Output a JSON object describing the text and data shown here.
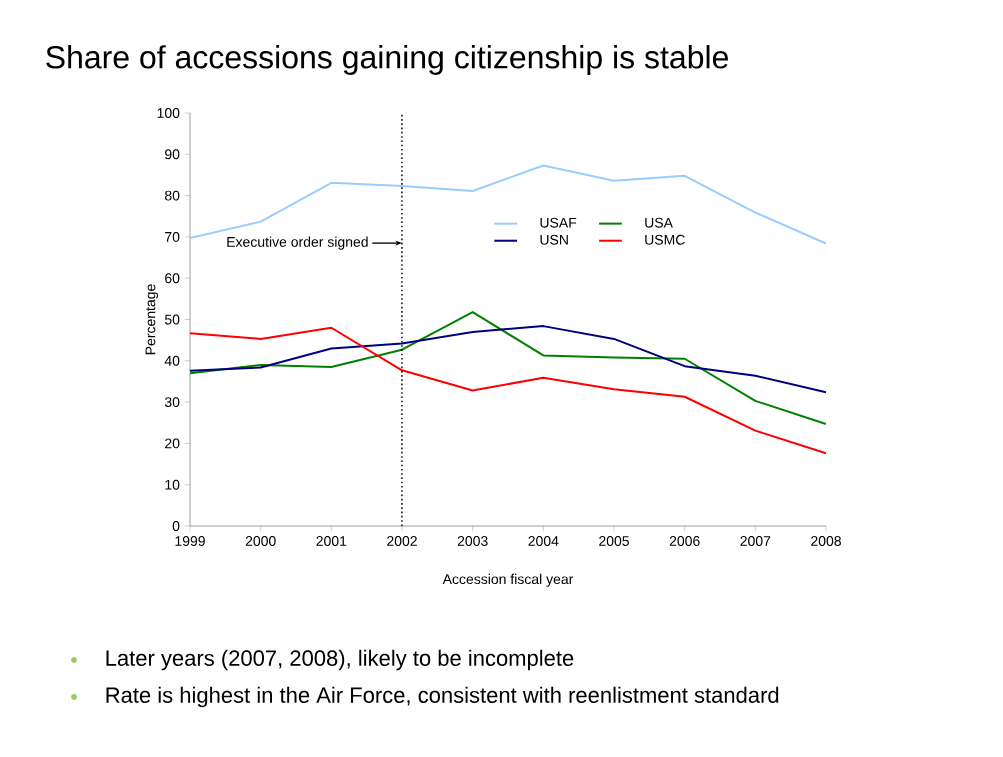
{
  "chart_data": {
    "type": "line",
    "title": "Share of accessions gaining citizenship is stable",
    "xlabel": "Accession fiscal year",
    "ylabel": "Percentage",
    "x": [
      1999,
      2000,
      2001,
      2002,
      2003,
      2004,
      2005,
      2006,
      2007,
      2008
    ],
    "xlim": [
      1999,
      2008
    ],
    "xticks": [
      1999,
      2000,
      2001,
      2002,
      2003,
      2004,
      2005,
      2006,
      2007,
      2008
    ],
    "ylim": [
      0,
      100
    ],
    "yticks": [
      0,
      10,
      20,
      30,
      40,
      50,
      60,
      70,
      80,
      90,
      100
    ],
    "series": [
      {
        "name": "USAF",
        "color": "#99ccff",
        "values": [
          69.7,
          73.7,
          83.1,
          82.3,
          81.1,
          87.3,
          83.6,
          84.8,
          75.9,
          68.4
        ]
      },
      {
        "name": "USA",
        "color": "#008000",
        "values": [
          37,
          39,
          38.5,
          42.7,
          51.8,
          41.3,
          40.8,
          40.5,
          30.3,
          24.7
        ]
      },
      {
        "name": "USN",
        "color": "#000080",
        "values": [
          37.6,
          38.4,
          43,
          44.2,
          47,
          48.4,
          45.3,
          38.7,
          36.4,
          32.4
        ]
      },
      {
        "name": "USMC",
        "color": "#ff0000",
        "values": [
          46.7,
          45.3,
          48,
          37.7,
          32.8,
          35.9,
          33.1,
          31.3,
          23.1,
          17.6
        ]
      }
    ],
    "ref_lines": [
      {
        "axis": "x",
        "value": 2002,
        "label": "Executive order signed",
        "color": "#000000",
        "line_style": "dotted"
      }
    ],
    "annotations": [
      "Later years (2007, 2008), likely to be incomplete",
      "Rate is highest in the Air Force, consistent with reenlistment standard"
    ],
    "legend": "top",
    "grid": false,
    "marker": "none",
    "line_style": "solid"
  }
}
